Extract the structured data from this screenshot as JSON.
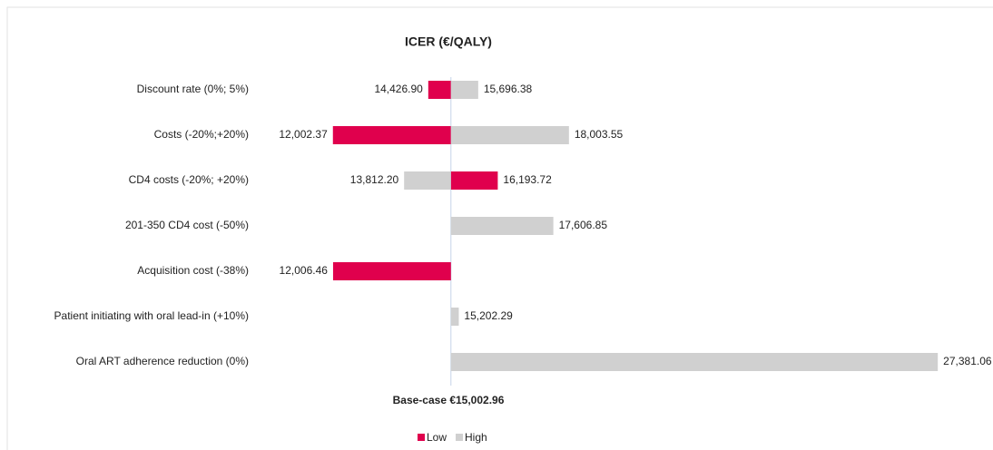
{
  "chart_data": {
    "type": "tornado",
    "title": "ICER (€/QALY)",
    "categories": [
      "Discount rate (0%; 5%)",
      "Costs (-20%;+20%)",
      "CD4 costs (-20%; +20%)",
      "201-350 CD4 cost (-50%)",
      "Acquisition cost (-38%)",
      "Patient initiating with oral lead-in (+10%)",
      "Oral ART adherence reduction (0%)"
    ],
    "base": 15002.96,
    "base_label": "Base-case €15,002.96",
    "series": [
      {
        "name": "Low",
        "color": "#e0004d",
        "values": [
          14426.9,
          12002.37,
          16193.72,
          null,
          12006.46,
          null,
          null
        ],
        "value_labels": [
          "14,426.90",
          "12,002.37",
          "16,193.72",
          null,
          "12,006.46",
          null,
          null
        ]
      },
      {
        "name": "High",
        "color": "#d0d0d0",
        "values": [
          15696.38,
          18003.55,
          13812.2,
          17606.85,
          null,
          15202.29,
          27381.06
        ],
        "value_labels": [
          "15,696.38",
          "18,003.55",
          "13,812.20",
          "17,606.85",
          null,
          "15,202.29",
          "27,381.06"
        ]
      }
    ],
    "xlim": [
      10000,
      28000
    ],
    "legend": "bottom"
  }
}
